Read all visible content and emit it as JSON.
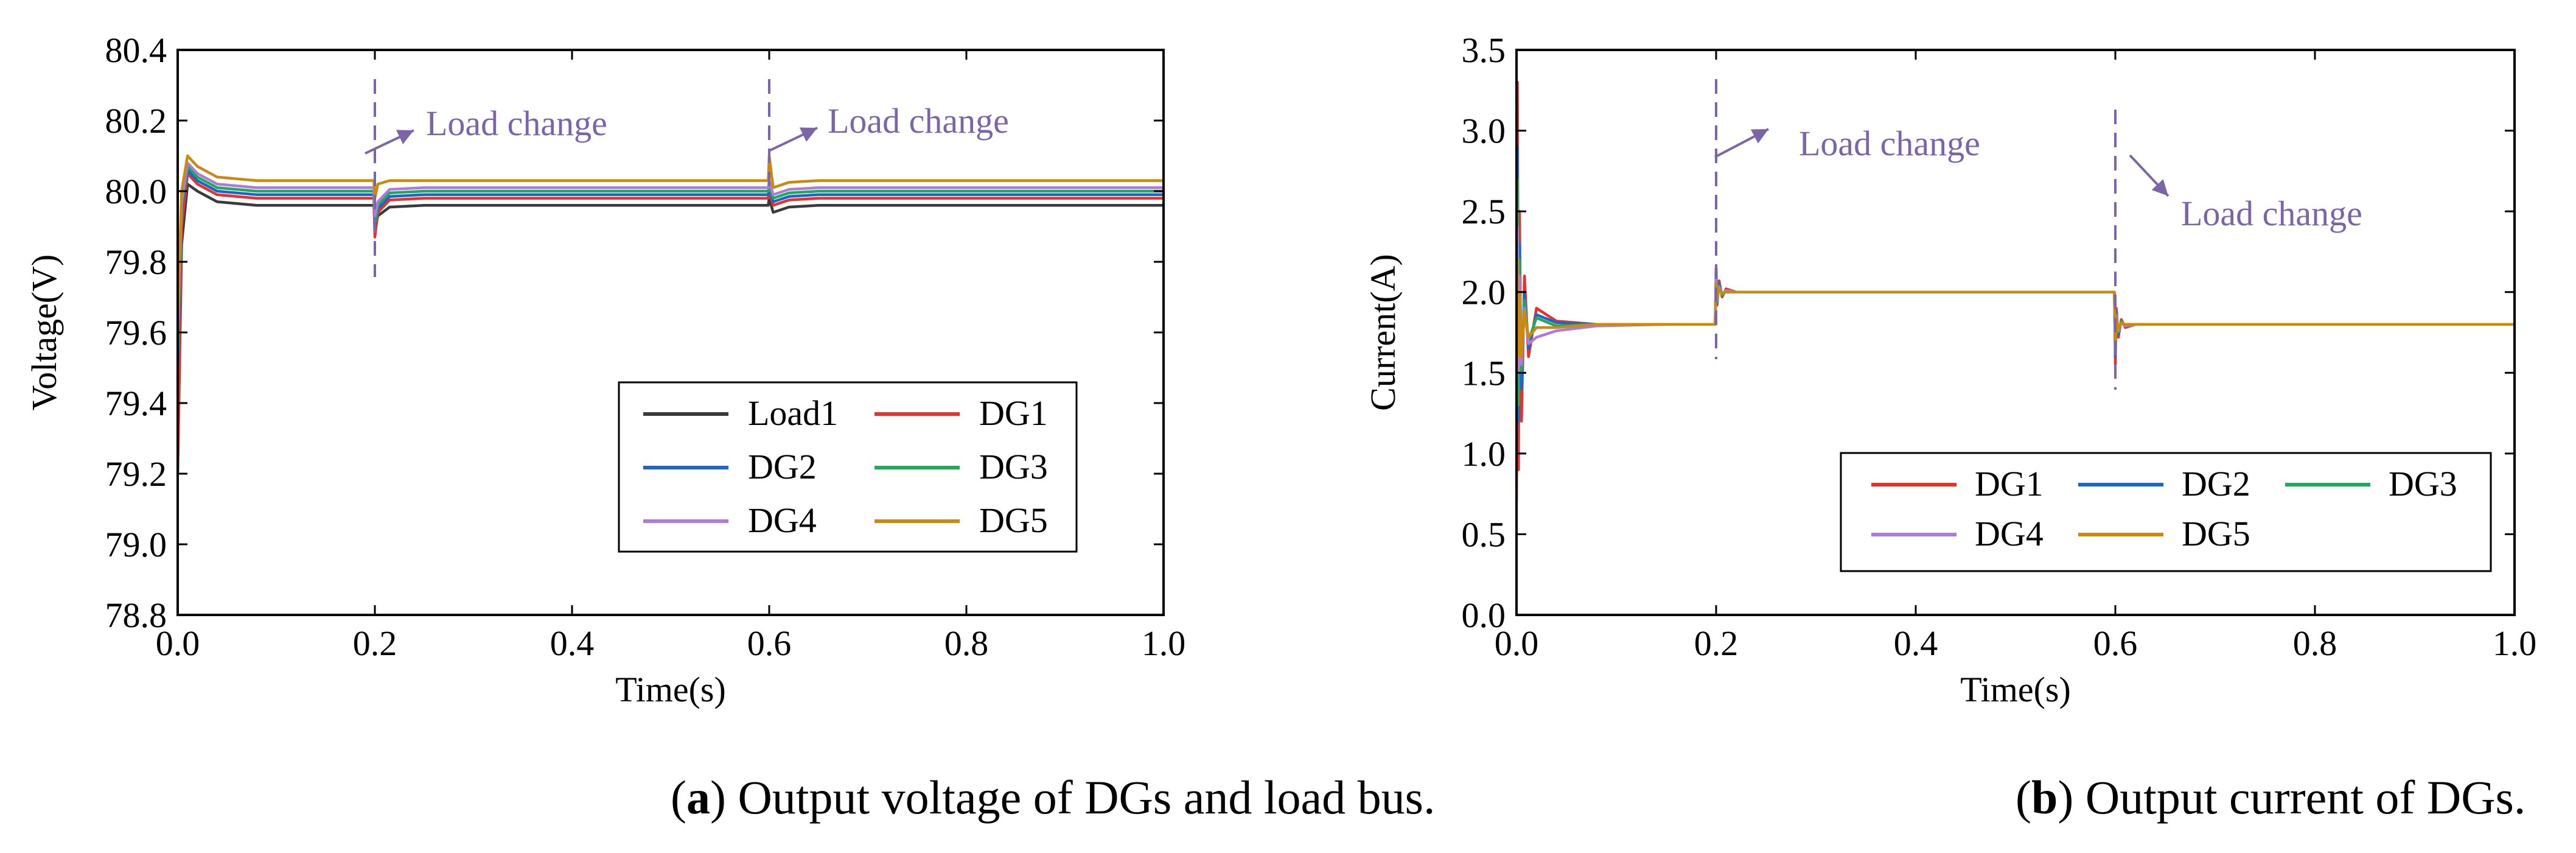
{
  "colors": {
    "Load1": "#3a3a3a",
    "DG1": "#e8312a",
    "DG2": "#1a66cc",
    "DG3": "#1faa5a",
    "DG4": "#b07ad8",
    "DG5": "#c98a0e",
    "annotation": "#7b64a8"
  },
  "chart_data": [
    {
      "type": "line",
      "id": "a",
      "xlabel": "Time(s)",
      "ylabel": "Voltage(V)",
      "xlim": [
        0.0,
        1.0
      ],
      "ylim": [
        78.8,
        80.4
      ],
      "xticks": [
        "0.0",
        "0.2",
        "0.4",
        "0.6",
        "0.8",
        "1.0"
      ],
      "yticks": [
        "78.8",
        "79.0",
        "79.2",
        "79.4",
        "79.6",
        "79.8",
        "80.0",
        "80.2",
        "80.4"
      ],
      "legend": {
        "location": "bottom-right",
        "entries": [
          "Load1",
          "DG1",
          "DG2",
          "DG3",
          "DG4",
          "DG5"
        ]
      },
      "annotations": [
        {
          "text": "Load change",
          "x": 0.2
        },
        {
          "text": "Load change",
          "x": 0.6
        }
      ],
      "caption_bold": "a",
      "caption_text": " Output voltage of DGs and load bus.",
      "series": [
        {
          "name": "Load1",
          "x": [
            0,
            0.004,
            0.01,
            0.02,
            0.04,
            0.08,
            0.199,
            0.2,
            0.203,
            0.215,
            0.25,
            0.599,
            0.6,
            0.604,
            0.62,
            0.65,
            1.0
          ],
          "y": [
            79.2,
            79.85,
            80.02,
            80.0,
            79.97,
            79.96,
            79.96,
            79.89,
            79.93,
            79.955,
            79.96,
            79.96,
            79.98,
            79.94,
            79.955,
            79.96,
            79.96
          ]
        },
        {
          "name": "DG1",
          "x": [
            0,
            0.004,
            0.01,
            0.02,
            0.04,
            0.08,
            0.199,
            0.2,
            0.203,
            0.215,
            0.25,
            0.599,
            0.6,
            0.604,
            0.62,
            0.65,
            1.0
          ],
          "y": [
            79.22,
            79.9,
            80.05,
            80.02,
            79.99,
            79.98,
            79.98,
            79.87,
            79.94,
            79.975,
            79.98,
            79.98,
            80.0,
            79.96,
            79.975,
            79.98,
            79.98
          ]
        },
        {
          "name": "DG2",
          "x": [
            0,
            0.004,
            0.01,
            0.02,
            0.04,
            0.08,
            0.199,
            0.2,
            0.203,
            0.215,
            0.25,
            0.599,
            0.6,
            0.604,
            0.62,
            0.65,
            1.0
          ],
          "y": [
            79.5,
            79.95,
            80.06,
            80.03,
            80.0,
            79.99,
            79.99,
            79.9,
            79.95,
            79.985,
            79.99,
            79.99,
            80.01,
            79.97,
            79.985,
            79.99,
            79.99
          ]
        },
        {
          "name": "DG3",
          "x": [
            0,
            0.004,
            0.01,
            0.02,
            0.04,
            0.08,
            0.199,
            0.2,
            0.203,
            0.215,
            0.25,
            0.599,
            0.6,
            0.604,
            0.62,
            0.65,
            1.0
          ],
          "y": [
            79.55,
            79.96,
            80.07,
            80.04,
            80.01,
            80.0,
            80.0,
            79.91,
            79.96,
            79.995,
            80.0,
            80.0,
            80.02,
            79.98,
            79.995,
            80.0,
            80.0
          ]
        },
        {
          "name": "DG4",
          "x": [
            0,
            0.004,
            0.01,
            0.02,
            0.04,
            0.08,
            0.199,
            0.2,
            0.203,
            0.215,
            0.25,
            0.599,
            0.6,
            0.604,
            0.62,
            0.65,
            1.0
          ],
          "y": [
            79.6,
            79.97,
            80.08,
            80.05,
            80.02,
            80.01,
            80.01,
            79.93,
            79.97,
            80.005,
            80.01,
            80.01,
            80.03,
            79.99,
            80.005,
            80.01,
            80.01
          ]
        },
        {
          "name": "DG5",
          "x": [
            0,
            0.004,
            0.01,
            0.02,
            0.04,
            0.08,
            0.199,
            0.2,
            0.203,
            0.215,
            0.25,
            0.599,
            0.6,
            0.604,
            0.62,
            0.65,
            1.0
          ],
          "y": [
            79.65,
            80.0,
            80.1,
            80.07,
            80.04,
            80.03,
            80.03,
            79.98,
            80.02,
            80.03,
            80.03,
            80.03,
            80.1,
            80.01,
            80.025,
            80.03,
            80.03
          ]
        }
      ]
    },
    {
      "type": "line",
      "id": "b",
      "xlabel": "Time(s)",
      "ylabel": "Current(A)",
      "xlim": [
        0.0,
        1.0
      ],
      "ylim": [
        0.0,
        3.5
      ],
      "xticks": [
        "0.0",
        "0.2",
        "0.4",
        "0.6",
        "0.8",
        "1.0"
      ],
      "yticks": [
        "0.0",
        "0.5",
        "1.0",
        "1.5",
        "2.0",
        "2.5",
        "3.0",
        "3.5"
      ],
      "legend": {
        "location": "bottom-right",
        "entries": [
          "DG1",
          "DG2",
          "DG3",
          "DG4",
          "DG5"
        ]
      },
      "annotations": [
        {
          "text": "Load change",
          "x": 0.2
        },
        {
          "text": "Load change",
          "x": 0.6
        }
      ],
      "caption_bold": "b",
      "caption_text": " Output current of DGs.",
      "series": [
        {
          "name": "DG1",
          "x": [
            0,
            0.001,
            0.002,
            0.003,
            0.005,
            0.008,
            0.012,
            0.02,
            0.04,
            0.08,
            0.15,
            0.199,
            0.2,
            0.201,
            0.203,
            0.206,
            0.21,
            0.22,
            0.25,
            0.599,
            0.6,
            0.601,
            0.603,
            0.606,
            0.61,
            0.62,
            0.65,
            1.0
          ],
          "y": [
            0.7,
            3.3,
            0.9,
            2.5,
            1.2,
            2.1,
            1.6,
            1.9,
            1.82,
            1.8,
            1.8,
            1.8,
            2.15,
            1.92,
            2.07,
            1.97,
            2.02,
            2.0,
            2.0,
            2.0,
            1.55,
            1.9,
            1.72,
            1.83,
            1.78,
            1.8,
            1.8,
            1.8
          ]
        },
        {
          "name": "DG2",
          "x": [
            0,
            0.001,
            0.002,
            0.003,
            0.005,
            0.008,
            0.012,
            0.02,
            0.04,
            0.08,
            0.15,
            0.199,
            0.2,
            0.201,
            0.203,
            0.206,
            0.21,
            0.22,
            0.25,
            0.599,
            0.6,
            0.601,
            0.603,
            0.606,
            0.61,
            0.62,
            0.65,
            1.0
          ],
          "y": [
            1.0,
            2.9,
            1.2,
            2.3,
            1.4,
            2.0,
            1.65,
            1.86,
            1.81,
            1.8,
            1.8,
            1.8,
            2.12,
            1.93,
            2.05,
            1.98,
            2.01,
            2.0,
            2.0,
            2.0,
            1.6,
            1.88,
            1.74,
            1.82,
            1.79,
            1.8,
            1.8,
            1.8
          ]
        },
        {
          "name": "DG3",
          "x": [
            0,
            0.001,
            0.002,
            0.003,
            0.005,
            0.008,
            0.012,
            0.02,
            0.04,
            0.08,
            0.15,
            0.199,
            0.2,
            0.201,
            0.203,
            0.206,
            0.21,
            0.22,
            0.25,
            0.599,
            0.6,
            0.601,
            0.603,
            0.606,
            0.61,
            0.62,
            0.65,
            1.0
          ],
          "y": [
            1.2,
            2.7,
            1.3,
            2.2,
            1.5,
            1.95,
            1.7,
            1.84,
            1.79,
            1.8,
            1.8,
            1.8,
            2.1,
            1.94,
            2.04,
            1.98,
            2.01,
            2.0,
            2.0,
            2.0,
            1.62,
            1.86,
            1.75,
            1.82,
            1.79,
            1.8,
            1.8,
            1.8
          ]
        },
        {
          "name": "DG4",
          "x": [
            0,
            0.001,
            0.002,
            0.003,
            0.005,
            0.008,
            0.012,
            0.02,
            0.04,
            0.08,
            0.15,
            0.199,
            0.2,
            0.201,
            0.203,
            0.206,
            0.21,
            0.22,
            0.25,
            0.599,
            0.6,
            0.601,
            0.603,
            0.606,
            0.61,
            0.62,
            0.65,
            1.0
          ],
          "y": [
            1.4,
            2.4,
            1.5,
            2.1,
            1.55,
            1.9,
            1.68,
            1.72,
            1.76,
            1.79,
            1.8,
            1.8,
            2.08,
            1.95,
            2.03,
            1.99,
            2.01,
            2.0,
            2.0,
            2.0,
            1.65,
            1.85,
            1.76,
            1.81,
            1.79,
            1.8,
            1.8,
            1.8
          ]
        },
        {
          "name": "DG5",
          "x": [
            0,
            0.001,
            0.002,
            0.003,
            0.005,
            0.008,
            0.012,
            0.02,
            0.04,
            0.08,
            0.15,
            0.199,
            0.2,
            0.201,
            0.203,
            0.206,
            0.21,
            0.22,
            0.25,
            0.599,
            0.6,
            0.601,
            0.603,
            0.606,
            0.61,
            0.62,
            0.65,
            1.0
          ],
          "y": [
            1.5,
            2.2,
            1.6,
            2.0,
            1.6,
            1.88,
            1.72,
            1.78,
            1.78,
            1.8,
            1.8,
            1.8,
            2.05,
            1.96,
            2.02,
            1.99,
            2.0,
            2.0,
            2.0,
            2.0,
            1.68,
            1.84,
            1.77,
            1.81,
            1.8,
            1.8,
            1.8,
            1.8
          ]
        }
      ]
    }
  ]
}
